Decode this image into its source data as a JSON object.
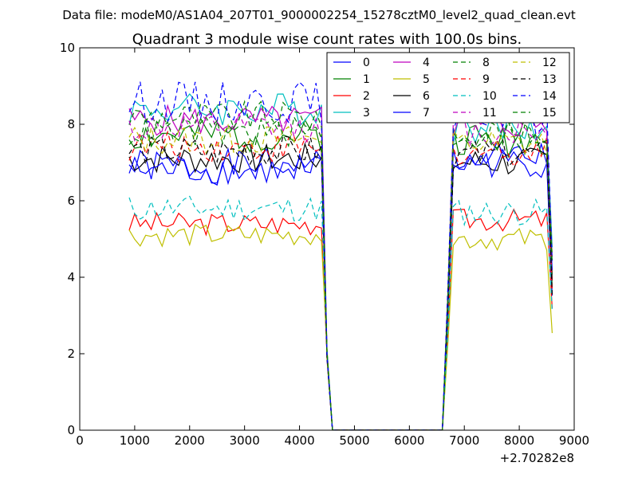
{
  "suptitle": "Data file: modeM0/AS1A04_207T01_9000002254_15278cztM0_level2_quad_clean.evt",
  "chart_data": {
    "type": "line",
    "title": "Quadrant 3 module wise count rates with 100.0s bins.",
    "xlabel": "",
    "ylabel": "",
    "x_offset_label": "+2.70282e8",
    "xlim": [
      0,
      9000
    ],
    "ylim": [
      0,
      10
    ],
    "xticks": [
      0,
      1000,
      2000,
      3000,
      4000,
      5000,
      6000,
      7000,
      8000,
      9000
    ],
    "yticks": [
      0,
      2,
      4,
      6,
      8,
      10
    ],
    "grid": false,
    "legend_position": "top-right",
    "legend_columns": 4,
    "x": [
      900,
      1000,
      1100,
      1200,
      1300,
      1400,
      1500,
      1600,
      1700,
      1800,
      1900,
      2000,
      2100,
      2200,
      2300,
      2400,
      2500,
      2600,
      2700,
      2800,
      2900,
      3000,
      3100,
      3200,
      3300,
      3400,
      3500,
      3600,
      3700,
      3800,
      3900,
      4000,
      4100,
      4200,
      4300,
      4400,
      4500,
      4600,
      4700,
      4800,
      4900,
      5000,
      5100,
      5200,
      5300,
      5400,
      5500,
      5600,
      5700,
      5800,
      5900,
      6000,
      6100,
      6200,
      6300,
      6400,
      6500,
      6600,
      6700,
      6800,
      6900,
      7000,
      7100,
      7200,
      7300,
      7400,
      7500,
      7600,
      7700,
      7800,
      7900,
      8000,
      8100,
      8200,
      8300,
      8400,
      8500,
      8600
    ],
    "series": [
      {
        "name": "0",
        "color": "#0000ff",
        "dash": "solid",
        "base_a": 6.9,
        "base_b": 7.1,
        "amp": 0.45,
        "seed": 1
      },
      {
        "name": "1",
        "color": "#008000",
        "dash": "solid",
        "base_a": 7.7,
        "base_b": 7.6,
        "amp": 0.45,
        "seed": 2
      },
      {
        "name": "2",
        "color": "#ff0000",
        "dash": "solid",
        "base_a": 5.4,
        "base_b": 5.5,
        "amp": 0.3,
        "seed": 3
      },
      {
        "name": "3",
        "color": "#00bfbf",
        "dash": "solid",
        "base_a": 8.4,
        "base_b": 7.9,
        "amp": 0.45,
        "seed": 4
      },
      {
        "name": "4",
        "color": "#bf00bf",
        "dash": "solid",
        "base_a": 8.1,
        "base_b": 8.0,
        "amp": 0.4,
        "seed": 5
      },
      {
        "name": "5",
        "color": "#bfbf00",
        "dash": "solid",
        "base_a": 5.1,
        "base_b": 5.0,
        "amp": 0.3,
        "seed": 6
      },
      {
        "name": "6",
        "color": "#000000",
        "dash": "solid",
        "base_a": 7.1,
        "base_b": 7.0,
        "amp": 0.4,
        "seed": 7
      },
      {
        "name": "7",
        "color": "#0000ff",
        "dash": "solid",
        "base_a": 6.8,
        "base_b": 7.0,
        "amp": 0.4,
        "seed": 8
      },
      {
        "name": "8",
        "color": "#008000",
        "dash": "dashed",
        "base_a": 8.2,
        "base_b": 7.8,
        "amp": 0.4,
        "seed": 9
      },
      {
        "name": "9",
        "color": "#ff0000",
        "dash": "dashed",
        "base_a": 7.4,
        "base_b": 7.3,
        "amp": 0.4,
        "seed": 10
      },
      {
        "name": "10",
        "color": "#00bfbf",
        "dash": "dashed",
        "base_a": 5.8,
        "base_b": 5.7,
        "amp": 0.35,
        "seed": 11
      },
      {
        "name": "11",
        "color": "#bf00bf",
        "dash": "dashed",
        "base_a": 7.9,
        "base_b": 7.8,
        "amp": 0.4,
        "seed": 12
      },
      {
        "name": "12",
        "color": "#bfbf00",
        "dash": "dashed",
        "base_a": 7.6,
        "base_b": 7.5,
        "amp": 0.4,
        "seed": 13
      },
      {
        "name": "13",
        "color": "#000000",
        "dash": "dashed",
        "base_a": 7.3,
        "base_b": 7.2,
        "amp": 0.4,
        "seed": 14
      },
      {
        "name": "14",
        "color": "#0000ff",
        "dash": "dashed",
        "base_a": 8.6,
        "base_b": 8.3,
        "amp": 0.55,
        "seed": 15
      },
      {
        "name": "15",
        "color": "#008000",
        "dash": "dashed",
        "base_a": 7.8,
        "base_b": 7.7,
        "amp": 0.4,
        "seed": 16
      }
    ]
  }
}
